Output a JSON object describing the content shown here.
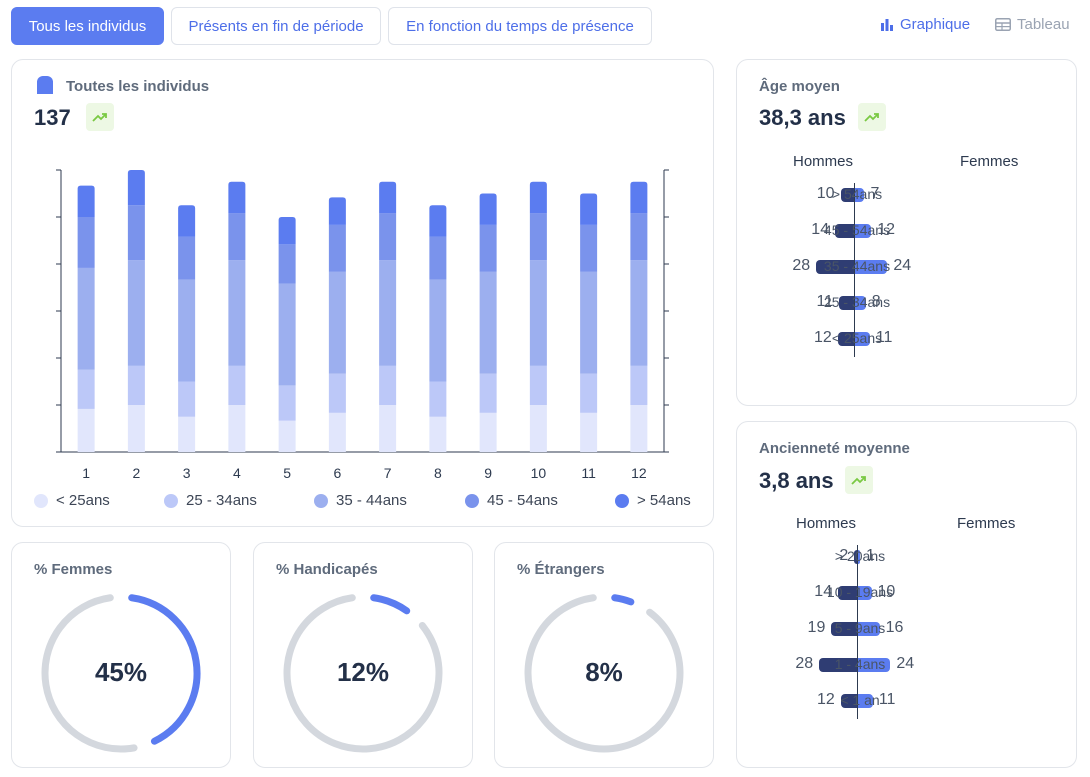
{
  "tabs": [
    {
      "label": "Tous les individus",
      "active": true
    },
    {
      "label": "Présents en fin de période",
      "active": false
    },
    {
      "label": "En fonction du temps de présence",
      "active": false
    }
  ],
  "view": {
    "graph_label": "Graphique",
    "table_label": "Tableau",
    "active": "graph"
  },
  "colors": {
    "accent": "#5b7cf0",
    "men": "#2f3d73",
    "women": "#5b7cf0",
    "trend_bg": "#edf8e4",
    "trend_icon": "#7ac943",
    "ring": "#d4d8de"
  },
  "main_card": {
    "title": "Toutes les individus",
    "value": "137"
  },
  "chart_data": {
    "type": "bar",
    "stacked": true,
    "categories": [
      "1",
      "2",
      "3",
      "4",
      "5",
      "6",
      "7",
      "8",
      "9",
      "10",
      "11",
      "12"
    ],
    "series": [
      {
        "name": "< 25ans",
        "color": "#e1e6fc",
        "values": [
          11,
          12,
          9,
          12,
          8,
          10,
          12,
          9,
          10,
          12,
          10,
          12
        ]
      },
      {
        "name": "25 - 34ans",
        "color": "#bcc8f8",
        "values": [
          10,
          10,
          9,
          10,
          9,
          10,
          10,
          9,
          10,
          10,
          10,
          10
        ]
      },
      {
        "name": "35 - 44ans",
        "color": "#9cafef",
        "values": [
          26,
          27,
          26,
          27,
          26,
          26,
          27,
          26,
          26,
          27,
          26,
          27
        ]
      },
      {
        "name": "45 - 54ans",
        "color": "#7a93ec",
        "values": [
          13,
          14,
          11,
          12,
          10,
          12,
          12,
          11,
          12,
          12,
          12,
          12
        ]
      },
      {
        "name": "> 54ans",
        "color": "#5b7cf0",
        "values": [
          8,
          9,
          8,
          8,
          7,
          7,
          8,
          8,
          8,
          8,
          8,
          8
        ]
      }
    ],
    "ylim": [
      0,
      72
    ],
    "xlabel": "",
    "ylabel": ""
  },
  "age_card": {
    "title": "Âge moyen",
    "value": "38,3 ans",
    "men_header": "Hommes",
    "women_header": "Femmes",
    "rows": [
      {
        "label": "> 54ans",
        "men": 10,
        "women": 7
      },
      {
        "label": "45 - 54ans",
        "men": 14,
        "women": 12
      },
      {
        "label": "35 - 44ans",
        "men": 28,
        "women": 24
      },
      {
        "label": "25 - 34ans",
        "men": 11,
        "women": 8
      },
      {
        "label": "< 25ans",
        "men": 12,
        "women": 11
      }
    ]
  },
  "seniority_card": {
    "title": "Ancienneté moyenne",
    "value": "3,8 ans",
    "men_header": "Hommes",
    "women_header": "Femmes",
    "rows": [
      {
        "label": "> 20ans",
        "men": 2,
        "women": 1
      },
      {
        "label": "10 - 19ans",
        "men": 14,
        "women": 10
      },
      {
        "label": "5 - 9ans",
        "men": 19,
        "women": 16
      },
      {
        "label": "1 - 4ans",
        "men": 28,
        "women": 24
      },
      {
        "label": "< 1 an",
        "men": 12,
        "women": 11
      }
    ]
  },
  "donuts": [
    {
      "title": "% Femmes",
      "label": "45%",
      "fraction": 0.45
    },
    {
      "title": "% Handicapés",
      "label": "12%",
      "fraction": 0.12
    },
    {
      "title": "% Étrangers",
      "label": "8%",
      "fraction": 0.08
    }
  ]
}
